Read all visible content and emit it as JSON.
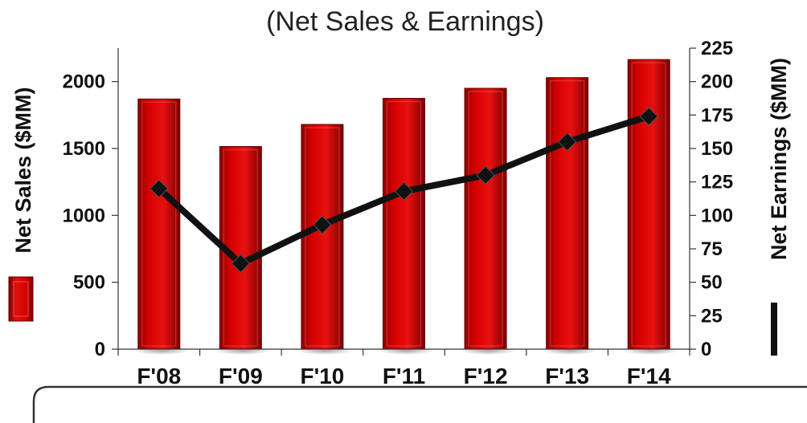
{
  "chart_data": {
    "type": "bar",
    "title": "(Net Sales & Earnings)",
    "categories": [
      "F'08",
      "F'09",
      "F'10",
      "F'11",
      "F'12",
      "F'13",
      "F'14"
    ],
    "series": [
      {
        "name": "Net Sales ($MM)",
        "type": "bar",
        "axis": "left",
        "values": [
          1870,
          1515,
          1680,
          1875,
          1950,
          2030,
          2165
        ]
      },
      {
        "name": "Net Earnings ($MM)",
        "type": "line",
        "axis": "right",
        "values": [
          120,
          64,
          93,
          118,
          130,
          155,
          174
        ]
      }
    ],
    "y_left": {
      "label": "Net Sales ($MM)",
      "ylim": [
        0,
        2250
      ],
      "ticks": [
        "0",
        "500",
        "1000",
        "1500",
        "2000"
      ]
    },
    "y_right": {
      "label": "Net Earnings ($MM)",
      "ylim": [
        0,
        225
      ],
      "ticks": [
        "0",
        "25",
        "50",
        "75",
        "100",
        "125",
        "150",
        "175",
        "200",
        "225"
      ]
    },
    "grid": false,
    "legend": "along axes",
    "colors": {
      "bar": "#d40000",
      "bar_dark": "#7a0000",
      "line": "#111111",
      "marker": "#111111"
    }
  }
}
